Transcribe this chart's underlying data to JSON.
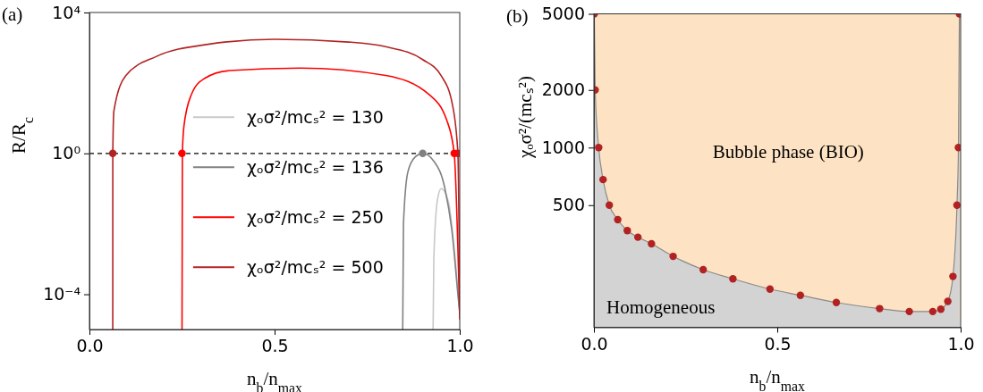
{
  "chart_data": [
    {
      "type": "line",
      "title": "(a)",
      "xlabel": "n$_{b}$/n$_{max}$",
      "ylabel": "R/R$_{c}$",
      "log": "y",
      "legend": "center",
      "xlim": [
        0,
        1
      ],
      "xticks": [
        {
          "value": 0,
          "label": "0.0"
        },
        {
          "value": 0.5,
          "label": "0.5"
        },
        {
          "value": 1,
          "label": "1.0"
        }
      ],
      "ylim": [
        1e-05,
        10000
      ],
      "yticks": [
        {
          "value": 10000,
          "label": "10⁴"
        },
        {
          "value": 1,
          "label": "10⁰"
        },
        {
          "value": 0.0001,
          "label": "10⁻⁴"
        }
      ],
      "ref_lines": [
        {
          "axis": "y",
          "value": 1,
          "color": "#000000",
          "line_style": "dashed"
        }
      ],
      "series": [
        {
          "name": "χₒσ²/mcₛ² = 130",
          "color": "#c8c8c8",
          "x": [
            0.928,
            0.93,
            0.94,
            0.95,
            0.97,
            0.985,
            1.0
          ],
          "values": [
            1e-05,
            0.001,
            0.05,
            0.1,
            0.04,
            0.002,
            3e-05
          ]
        },
        {
          "name": "χₒσ²/mcₛ² = 136",
          "color": "#808080",
          "x": [
            0.846,
            0.848,
            0.86,
            0.88,
            0.9,
            0.93,
            0.96,
            0.98,
            0.995,
            1.0
          ],
          "values": [
            1e-05,
            0.01,
            0.3,
            0.8,
            1,
            0.6,
            0.1,
            0.005,
            0.0001,
            3e-05
          ]
        },
        {
          "name": "χₒσ²/mcₛ² = 250",
          "color": "#ff0000",
          "x": [
            0.25,
            0.251,
            0.255,
            0.275,
            0.31,
            0.378,
            0.57,
            0.8,
            0.918,
            0.965,
            0.985,
            1.0
          ],
          "values": [
            1e-05,
            1,
            5.7,
            46,
            133,
            224,
            265,
            163,
            46,
            8.7,
            1,
            2e-05
          ]
        },
        {
          "name": "χₒσ²/mcₛ² = 500",
          "color": "#b22222",
          "x": [
            0.063,
            0.0631,
            0.066,
            0.098,
            0.18,
            0.32,
            0.5,
            0.7,
            0.8,
            0.9,
            0.95,
            0.98,
            0.995,
            1.0
          ],
          "values": [
            1e-05,
            1,
            16,
            160,
            560,
            1250,
            1740,
            1450,
            1070,
            460,
            160,
            25,
            1,
            5e-05
          ]
        },
        {
          "type": "scatter",
          "color": "#b22222",
          "x": [
            0.063,
            0.995
          ],
          "values": [
            1,
            1
          ]
        },
        {
          "type": "scatter",
          "color": "#ff0000",
          "x": [
            0.25,
            0.985
          ],
          "values": [
            1,
            1
          ]
        },
        {
          "type": "scatter",
          "color": "#808080",
          "x": [
            0.9
          ],
          "values": [
            1
          ]
        }
      ]
    },
    {
      "type": "area",
      "title": "(b)",
      "xlabel": "n$_{b}$/n$_{max}$",
      "ylabel": "χₒσ²/(mcₛ²)",
      "log": "y",
      "xlim": [
        0,
        1
      ],
      "xticks": [
        {
          "value": 0,
          "label": "0.0"
        },
        {
          "value": 0.5,
          "label": "0.5"
        },
        {
          "value": 1,
          "label": "1.0"
        }
      ],
      "ylim": [
        115,
        5000
      ],
      "yticks": [
        500,
        1000,
        2000,
        5000
      ],
      "bands": [
        {
          "axis": "y",
          "from": 115,
          "to": 5000,
          "color": "#fde3c3",
          "label": "Bubble phase (BIO)"
        }
      ],
      "series": [
        {
          "name": "Homogeneous",
          "color": "#d3d3d3",
          "x": [
            0.001,
            0.0034,
            0.013,
            0.025,
            0.042,
            0.065,
            0.091,
            0.12,
            0.157,
            0.216,
            0.298,
            0.379,
            0.48,
            0.563,
            0.661,
            0.779,
            0.86,
            0.924,
            0.946,
            0.965,
            0.979,
            0.99,
            0.994,
            0.9966
          ],
          "values": [
            5000,
            2000,
            1000,
            680,
            500,
            420,
            368,
            340,
            314,
            270,
            230,
            206,
            182,
            169,
            155,
            144,
            139,
            139,
            143,
            157,
            212,
            500,
            1000,
            5000
          ]
        },
        {
          "type": "scatter",
          "color": "#b22222",
          "x": [
            0.001,
            0.0034,
            0.013,
            0.025,
            0.042,
            0.065,
            0.091,
            0.12,
            0.157,
            0.216,
            0.298,
            0.379,
            0.48,
            0.563,
            0.661,
            0.779,
            0.86,
            0.924,
            0.946,
            0.965,
            0.979,
            0.99,
            0.994,
            0.9966
          ],
          "values": [
            5000,
            2000,
            1000,
            680,
            500,
            420,
            368,
            340,
            314,
            270,
            230,
            206,
            182,
            169,
            155,
            144,
            139,
            139,
            143,
            157,
            212,
            500,
            1000,
            5000
          ]
        }
      ]
    }
  ]
}
